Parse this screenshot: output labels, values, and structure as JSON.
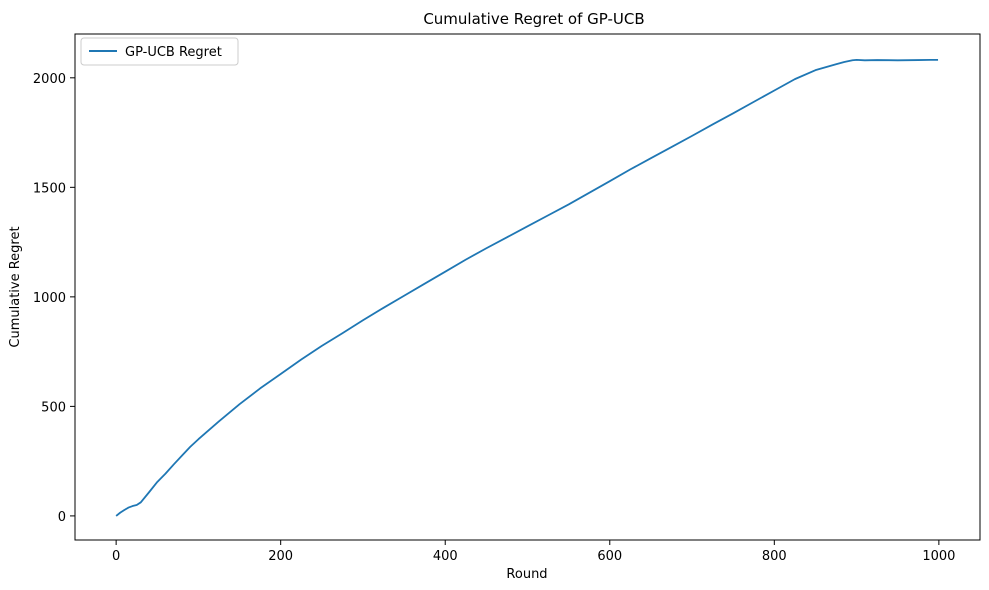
{
  "chart_data": {
    "type": "line",
    "title": "Cumulative Regret of GP-UCB",
    "xlabel": "Round",
    "ylabel": "Cumulative Regret",
    "xlim": [
      -50,
      1050
    ],
    "ylim": [
      -110,
      2200
    ],
    "x_ticks": [
      0,
      200,
      400,
      600,
      800,
      1000
    ],
    "y_ticks": [
      0,
      500,
      1000,
      1500,
      2000
    ],
    "x_tick_labels": [
      "0",
      "200",
      "400",
      "600",
      "800",
      "1000"
    ],
    "y_tick_labels": [
      "0",
      "500",
      "1000",
      "1500",
      "2000"
    ],
    "grid": false,
    "legend_position": "top-left",
    "series": [
      {
        "name": "GP-UCB Regret",
        "color": "#1f77b4",
        "x": [
          0,
          5,
          10,
          15,
          20,
          25,
          30,
          40,
          50,
          60,
          70,
          80,
          90,
          100,
          125,
          150,
          175,
          200,
          225,
          250,
          275,
          300,
          325,
          350,
          375,
          400,
          425,
          450,
          475,
          500,
          525,
          550,
          575,
          600,
          625,
          650,
          675,
          700,
          725,
          750,
          775,
          800,
          825,
          850,
          875,
          885,
          895,
          900,
          910,
          925,
          950,
          975,
          990,
          999
        ],
        "values": [
          0,
          15,
          27,
          38,
          45,
          50,
          62,
          108,
          155,
          193,
          235,
          275,
          315,
          350,
          432,
          510,
          582,
          648,
          714,
          776,
          834,
          893,
          950,
          1005,
          1060,
          1115,
          1170,
          1222,
          1272,
          1322,
          1372,
          1422,
          1475,
          1528,
          1582,
          1633,
          1684,
          1735,
          1787,
          1838,
          1890,
          1942,
          1994,
          2035,
          2062,
          2072,
          2080,
          2082,
          2080,
          2081,
          2080,
          2081,
          2082,
          2082
        ]
      }
    ]
  }
}
